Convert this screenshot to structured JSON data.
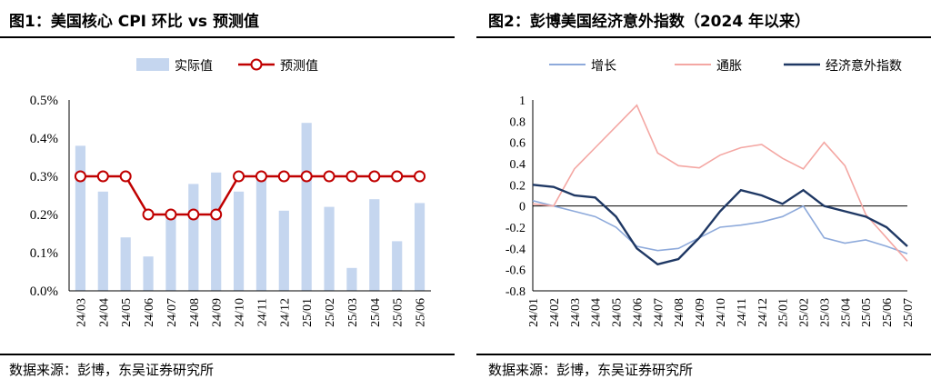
{
  "left": {
    "title": "图1：美国核心 CPI 环比 vs 预测值",
    "source": "数据来源：彭博，东吴证券研究所"
  },
  "right": {
    "title": "图2：彭博美国经济意外指数（2024 年以来）",
    "source": "数据来源：彭博，东吴证券研究所"
  },
  "chart_data": [
    {
      "type": "bar",
      "title": "美国核心 CPI 环比 vs 预测值",
      "categories": [
        "24/03",
        "24/04",
        "24/05",
        "24/06",
        "24/07",
        "24/08",
        "24/09",
        "24/10",
        "24/11",
        "24/12",
        "25/01",
        "25/02",
        "25/03",
        "25/04",
        "25/05",
        "25/06"
      ],
      "series": [
        {
          "name": "实际值",
          "type": "bar",
          "color": "#c5d6ef",
          "values": [
            0.38,
            0.26,
            0.14,
            0.09,
            0.19,
            0.28,
            0.31,
            0.26,
            0.29,
            0.21,
            0.44,
            0.22,
            0.06,
            0.24,
            0.13,
            0.23
          ]
        },
        {
          "name": "预测值",
          "type": "line",
          "color": "#c00000",
          "values": [
            0.3,
            0.3,
            0.3,
            0.2,
            0.2,
            0.2,
            0.2,
            0.3,
            0.3,
            0.3,
            0.3,
            0.3,
            0.3,
            0.3,
            0.3,
            0.3
          ]
        }
      ],
      "ylim": [
        0,
        0.5
      ],
      "yticks": [
        "0.0%",
        "0.1%",
        "0.2%",
        "0.3%",
        "0.4%",
        "0.5%"
      ],
      "xlabel": "",
      "ylabel": ""
    },
    {
      "type": "line",
      "title": "彭博美国经济意外指数（2024 年以来）",
      "categories": [
        "24/01",
        "24/02",
        "24/03",
        "24/04",
        "24/05",
        "24/06",
        "24/07",
        "24/08",
        "24/09",
        "24/10",
        "24/11",
        "24/12",
        "25/01",
        "25/02",
        "25/03",
        "25/04",
        "25/05",
        "25/06",
        "25/07"
      ],
      "ylim": [
        -0.8,
        1.0
      ],
      "yticks": [
        "-0.8",
        "-0.6",
        "-0.4",
        "-0.2",
        "0",
        "0.2",
        "0.4",
        "0.6",
        "0.8",
        "1"
      ],
      "series": [
        {
          "name": "增长",
          "color": "#8eaadb",
          "values": [
            0.05,
            0.0,
            -0.05,
            -0.1,
            -0.2,
            -0.38,
            -0.42,
            -0.4,
            -0.3,
            -0.2,
            -0.18,
            -0.15,
            -0.1,
            0.0,
            -0.3,
            -0.35,
            -0.32,
            -0.38,
            -0.45
          ]
        },
        {
          "name": "通胀",
          "color": "#f4a7a3",
          "values": [
            0.02,
            0.0,
            0.35,
            0.55,
            0.75,
            0.95,
            0.5,
            0.38,
            0.36,
            0.48,
            0.55,
            0.58,
            0.45,
            0.35,
            0.6,
            0.38,
            -0.08,
            -0.3,
            -0.52
          ]
        },
        {
          "name": "经济意外指数",
          "color": "#1f3864",
          "values": [
            0.2,
            0.18,
            0.1,
            0.08,
            -0.1,
            -0.4,
            -0.55,
            -0.5,
            -0.3,
            -0.05,
            0.15,
            0.1,
            0.02,
            0.15,
            0.0,
            -0.05,
            -0.1,
            -0.2,
            -0.38
          ]
        }
      ],
      "xlabel": "",
      "ylabel": ""
    }
  ]
}
